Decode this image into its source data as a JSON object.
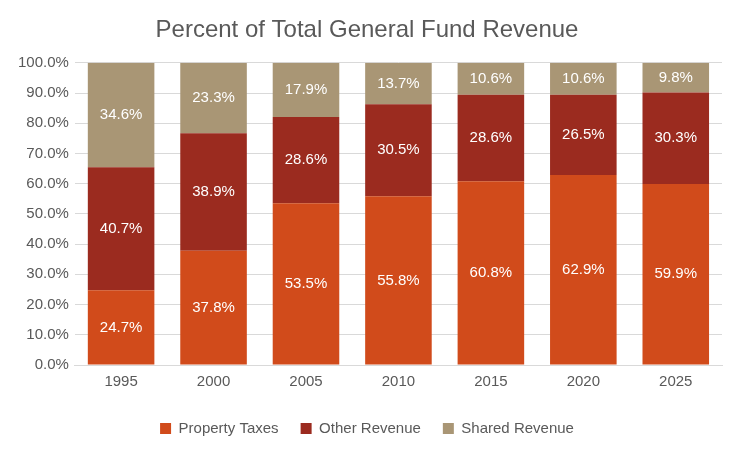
{
  "chart_data": {
    "type": "bar",
    "title": "Percent of Total General Fund Revenue",
    "categories": [
      "1995",
      "2000",
      "2005",
      "2010",
      "2015",
      "2020",
      "2025"
    ],
    "series": [
      {
        "name": "Property Taxes",
        "color": "#D14B1B",
        "values": [
          24.7,
          37.8,
          53.5,
          55.8,
          60.8,
          62.9,
          59.9
        ],
        "value_labels": [
          "24.7%",
          "37.8%",
          "53.5%",
          "55.8%",
          "60.8%",
          "62.9%",
          "59.9%"
        ]
      },
      {
        "name": "Other Revenue",
        "color": "#9B2B1F",
        "values": [
          40.7,
          38.9,
          28.6,
          30.5,
          28.6,
          26.5,
          30.3
        ],
        "value_labels": [
          "40.7%",
          "38.9%",
          "28.6%",
          "30.5%",
          "28.6%",
          "26.5%",
          "30.3%"
        ]
      },
      {
        "name": "Shared Revenue",
        "color": "#A99675",
        "values": [
          34.6,
          23.3,
          17.9,
          13.7,
          10.6,
          10.6,
          9.8
        ],
        "value_labels": [
          "34.6%",
          "23.3%",
          "17.9%",
          "13.7%",
          "10.6%",
          "10.6%",
          "9.8%"
        ]
      }
    ],
    "ylim": [
      0,
      100
    ],
    "yticks": [
      {
        "value": 0,
        "label": "0.0%"
      },
      {
        "value": 10,
        "label": "10.0%"
      },
      {
        "value": 20,
        "label": "20.0%"
      },
      {
        "value": 30,
        "label": "30.0%"
      },
      {
        "value": 40,
        "label": "40.0%"
      },
      {
        "value": 50,
        "label": "50.0%"
      },
      {
        "value": 60,
        "label": "60.0%"
      },
      {
        "value": 70,
        "label": "70.0%"
      },
      {
        "value": 80,
        "label": "80.0%"
      },
      {
        "value": 90,
        "label": "90.0%"
      },
      {
        "value": 100,
        "label": "100.0%"
      }
    ],
    "grid": true,
    "stacked": true,
    "data_labels": true,
    "legend": "bottom"
  }
}
